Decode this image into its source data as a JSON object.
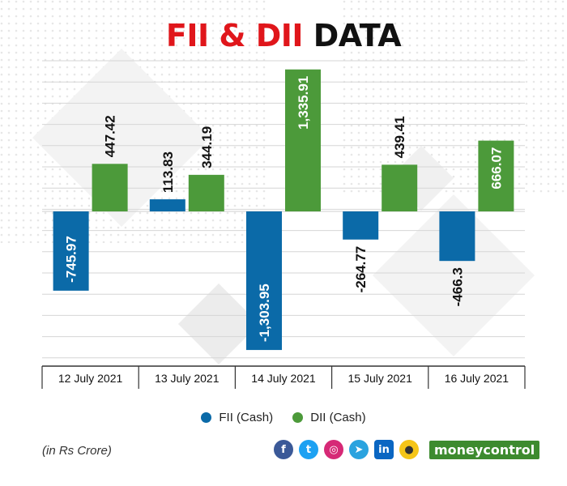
{
  "title": {
    "part1": "FII & DII",
    "part2": "DATA"
  },
  "colors": {
    "fii": "#0b6aa8",
    "dii": "#4c9a3a",
    "title_red": "#e0161b"
  },
  "chart_data": {
    "type": "bar",
    "categories": [
      "12 July 2021",
      "13 July 2021",
      "14 July 2021",
      "15 July 2021",
      "16 July 2021"
    ],
    "series": [
      {
        "name": "FII (Cash)",
        "values": [
          -745.97,
          113.83,
          -1303.95,
          -264.77,
          -466.3
        ],
        "labels": [
          "-745.97",
          "113.83",
          "-1,303.95",
          "-264.77",
          "-466.3"
        ]
      },
      {
        "name": "DII (Cash)",
        "values": [
          447.42,
          344.19,
          1335.91,
          439.41,
          666.07
        ],
        "labels": [
          "447.42",
          "344.19",
          "1,335.91",
          "439.41",
          "666.07"
        ]
      }
    ],
    "ylim": [
      -1350,
      1350
    ],
    "grid": true,
    "legend_position": "bottom"
  },
  "legend": {
    "fii_label": "FII (Cash)",
    "dii_label": "DII (Cash)"
  },
  "footnote": "(in Rs Crore)",
  "social": {
    "icons": [
      "facebook-icon",
      "twitter-icon",
      "instagram-icon",
      "telegram-icon",
      "linkedin-icon",
      "koo-icon"
    ],
    "brand": "moneycontrol"
  }
}
